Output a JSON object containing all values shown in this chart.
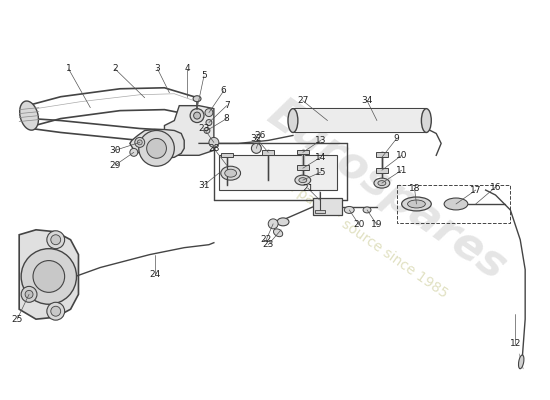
{
  "background_color": "#ffffff",
  "line_color": "#444444",
  "text_color": "#222222",
  "label_fontsize": 6.5,
  "wm_text": "Eurospares",
  "wm_sub": "a parts™ source since 1985",
  "wm_color1": "#cccccc",
  "wm_color2": "#d4d4b0"
}
